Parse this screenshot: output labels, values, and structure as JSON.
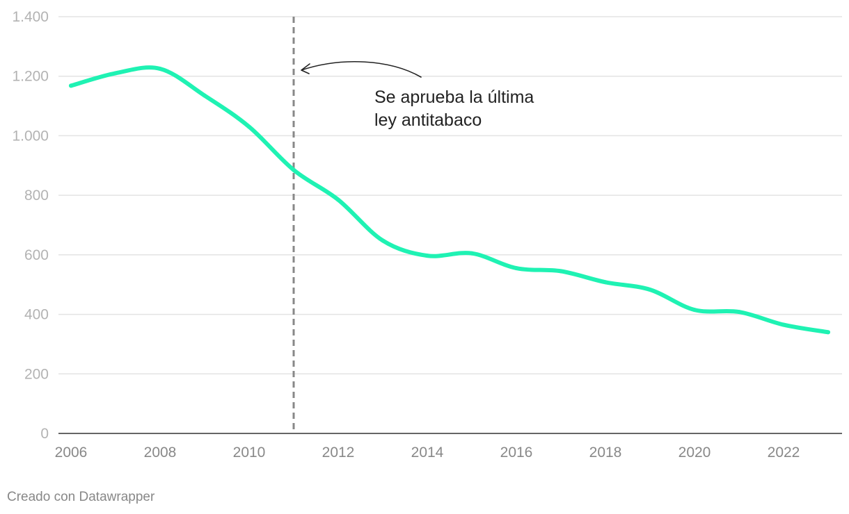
{
  "chart_data": {
    "type": "line",
    "title": "",
    "xlabel": "",
    "ylabel": "",
    "x": [
      2006,
      2007,
      2008,
      2009,
      2010,
      2011,
      2012,
      2013,
      2014,
      2015,
      2016,
      2017,
      2018,
      2019,
      2020,
      2021,
      2022,
      2023
    ],
    "series": [
      {
        "values": [
          1168,
          1210,
          1225,
          1135,
          1030,
          885,
          785,
          648,
          597,
          605,
          555,
          545,
          508,
          483,
          415,
          408,
          365,
          340
        ]
      }
    ],
    "xlim": [
      2006,
      2023
    ],
    "ylim": [
      0,
      1400
    ],
    "yticks": [
      0,
      200,
      400,
      600,
      800,
      1000,
      1200,
      1400
    ],
    "ytick_labels": [
      "0",
      "200",
      "400",
      "600",
      "800",
      "1.000",
      "1.200",
      "1.400"
    ],
    "xticks": [
      2006,
      2008,
      2010,
      2012,
      2014,
      2016,
      2018,
      2020,
      2022
    ],
    "xtick_labels": [
      "2006",
      "2008",
      "2010",
      "2012",
      "2014",
      "2016",
      "2018",
      "2020",
      "2022"
    ],
    "grid": true,
    "line_color": "#1ff2b3",
    "annotation": {
      "x": 2011,
      "lines": [
        "Se aprueba la última",
        "ley antitabaco"
      ]
    }
  },
  "credit": "Creado con Datawrapper"
}
